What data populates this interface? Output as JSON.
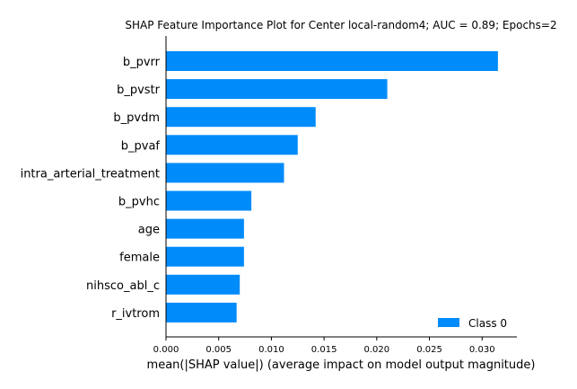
{
  "chart_data": {
    "type": "bar",
    "orientation": "horizontal",
    "title": "SHAP Feature Importance Plot for Center local-random4; AUC = 0.89; Epochs=2",
    "xlabel": "mean(|SHAP value|) (average impact on model output magnitude)",
    "ylabel": "",
    "categories": [
      "b_pvrr",
      "b_pvstr",
      "b_pvdm",
      "b_pvaf",
      "intra_arterial_treatment",
      "b_pvhc",
      "age",
      "female",
      "nihsco_abl_c",
      "r_ivtrom"
    ],
    "series": [
      {
        "name": "Class 0",
        "color": "#008bfb",
        "values": [
          0.0315,
          0.021,
          0.0142,
          0.0125,
          0.0112,
          0.0081,
          0.0074,
          0.0074,
          0.007,
          0.0067
        ]
      }
    ],
    "xlim": [
      0,
      0.0333
    ],
    "xticks": [
      0.0,
      0.005,
      0.01,
      0.015,
      0.02,
      0.025,
      0.03
    ],
    "xtick_labels": [
      "0.000",
      "0.005",
      "0.010",
      "0.015",
      "0.020",
      "0.025",
      "0.030"
    ],
    "grid": false,
    "legend_position": "lower-right"
  }
}
